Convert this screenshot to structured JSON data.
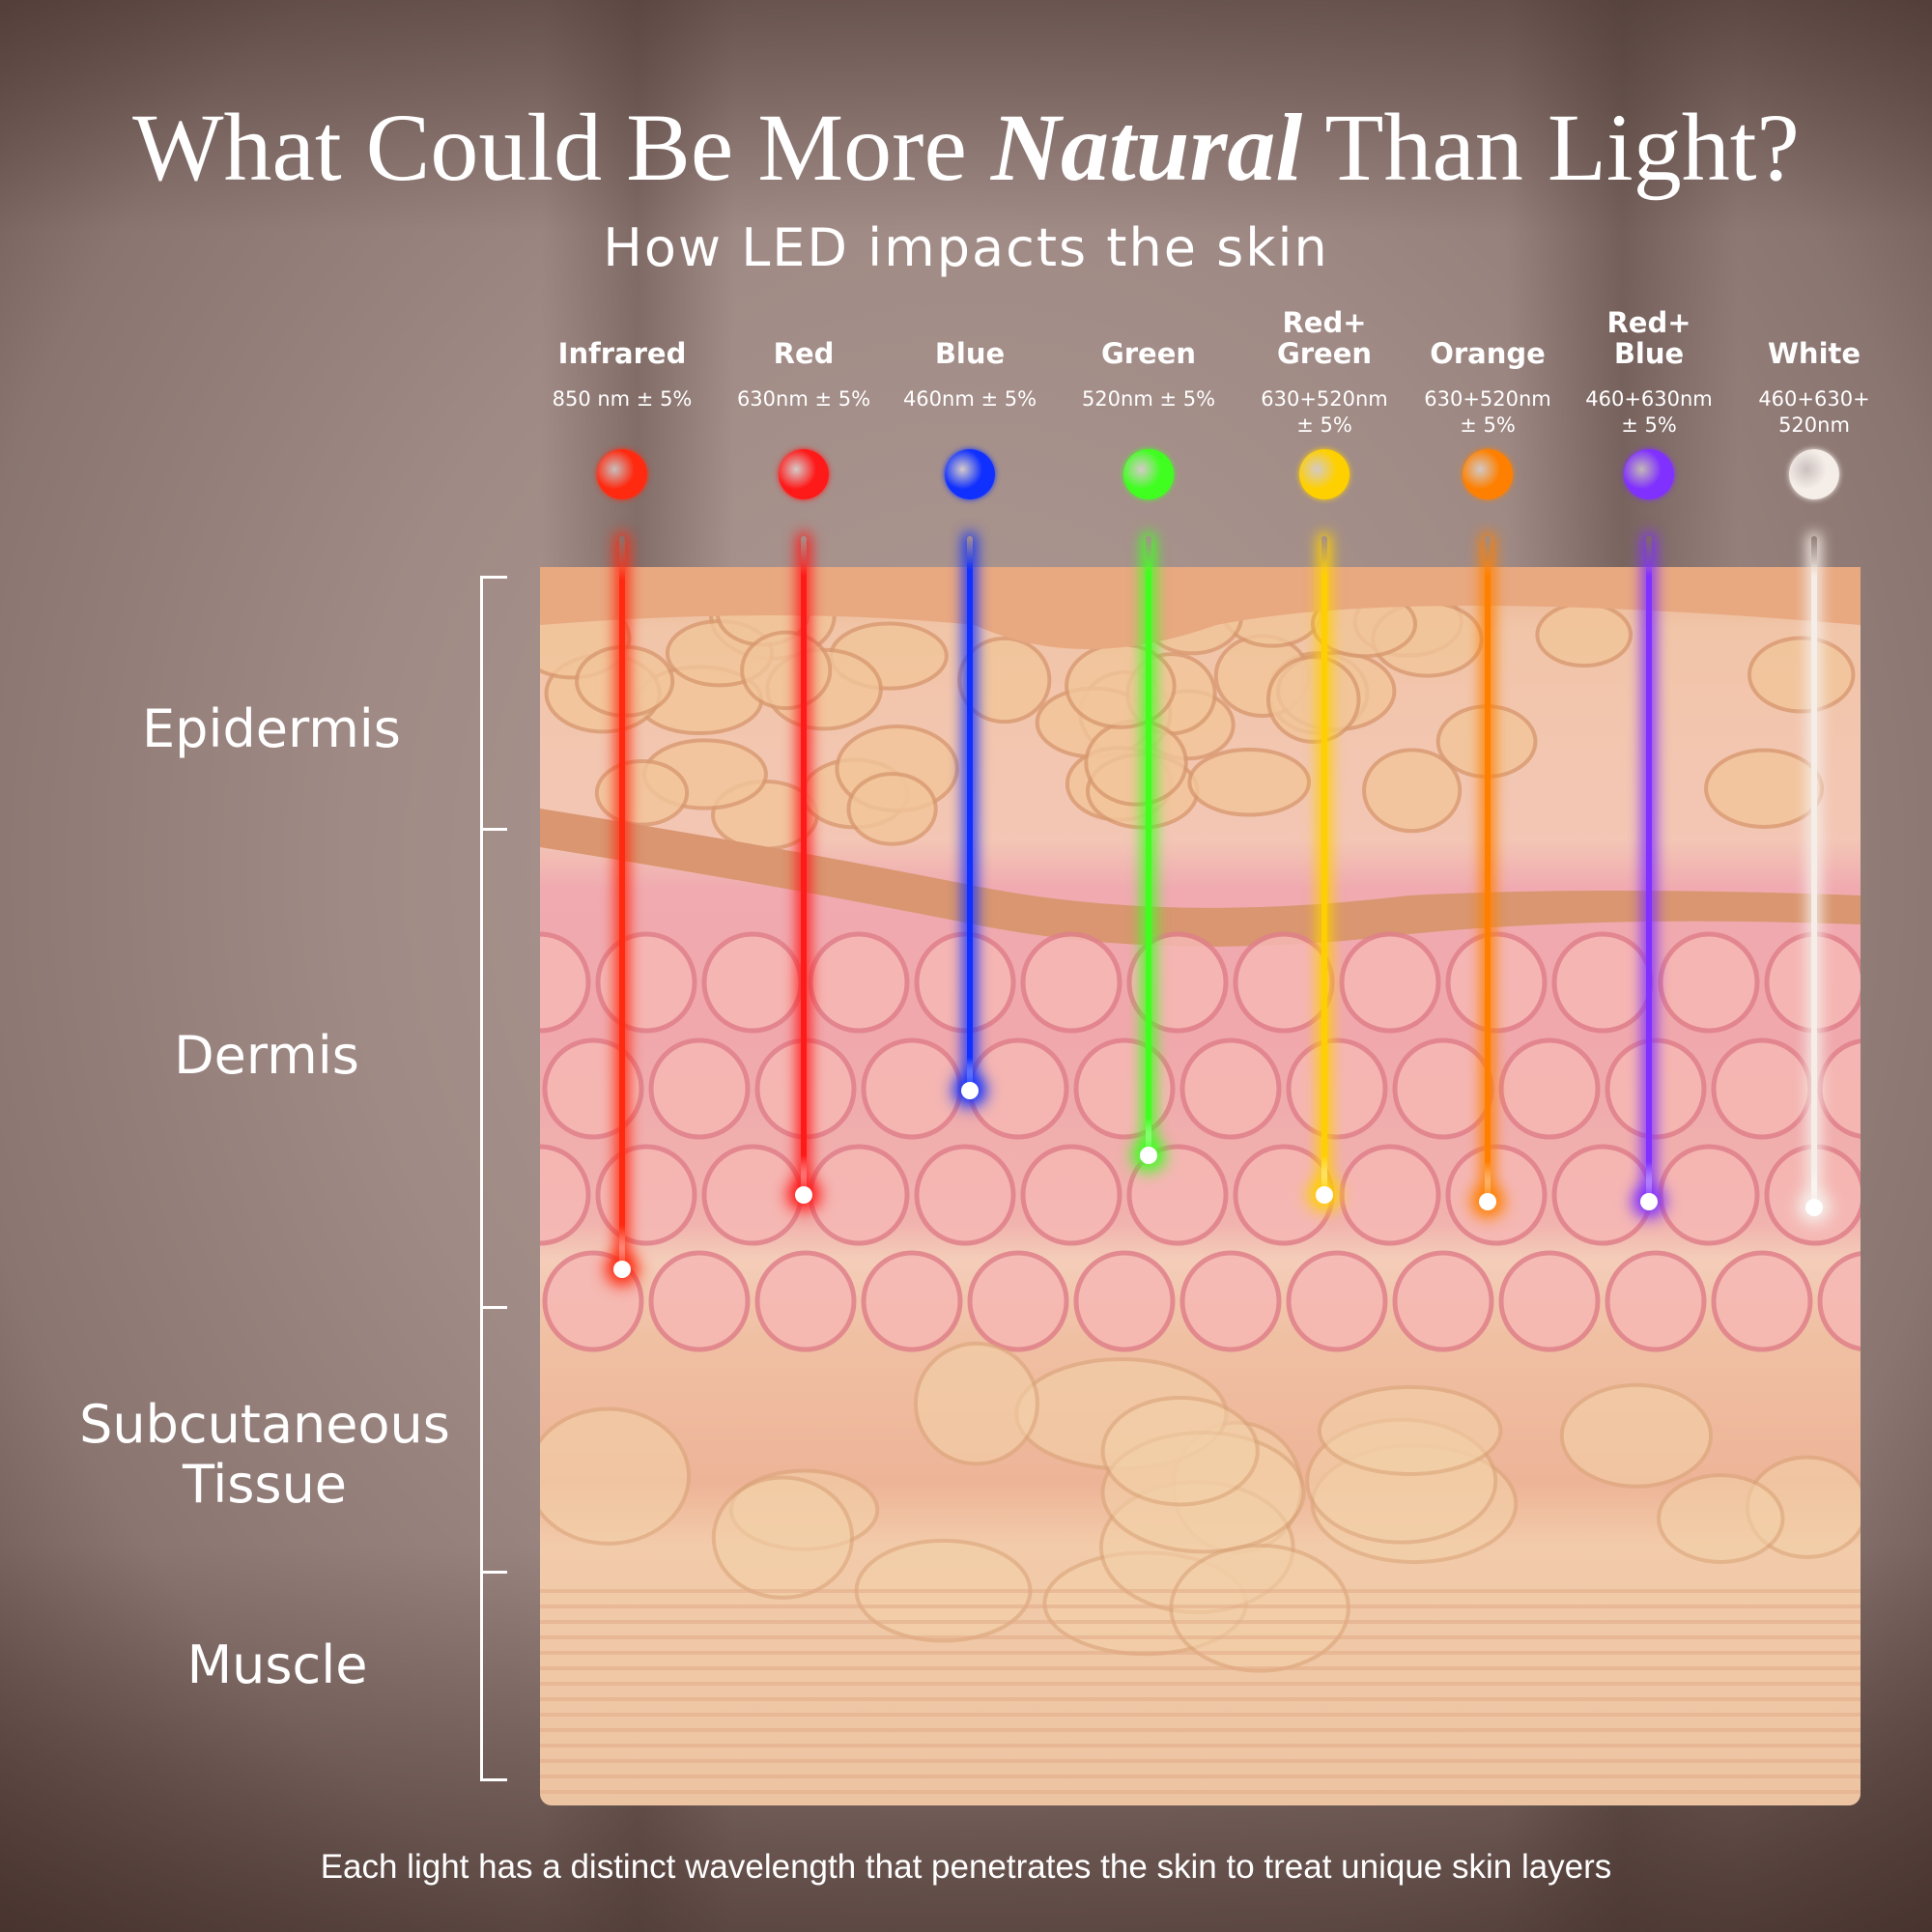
{
  "title": {
    "part1": "What Could Be More ",
    "emphasis": "Natural",
    "part2": " Than Light?"
  },
  "subtitle": "How LED impacts the skin",
  "lights": [
    {
      "name": "Infrared",
      "spec": "850 nm ± 5%",
      "color": "#ff2a10",
      "depth_layer": "Dermis"
    },
    {
      "name": "Red",
      "spec": "630nm ± 5%",
      "color": "#ff1a1a",
      "depth_layer": "Dermis"
    },
    {
      "name": "Blue",
      "spec": "460nm ± 5%",
      "color": "#1030ff",
      "depth_layer": "Dermis"
    },
    {
      "name": "Green",
      "spec": "520nm ± 5%",
      "color": "#40ff20",
      "depth_layer": "Dermis"
    },
    {
      "name": "Red+\nGreen",
      "spec": "630+520nm\n± 5%",
      "color": "#ffd000",
      "depth_layer": "Dermis"
    },
    {
      "name": "Orange",
      "spec": "630+520nm\n± 5%",
      "color": "#ff8000",
      "depth_layer": "Dermis"
    },
    {
      "name": "Red+\nBlue",
      "spec": "460+630nm\n± 5%",
      "color": "#8030ff",
      "depth_layer": "Dermis"
    },
    {
      "name": "White",
      "spec": "460+630+\n520nm",
      "color": "#f5ede8",
      "depth_layer": "Dermis"
    }
  ],
  "layers": {
    "epidermis": "Epidermis",
    "dermis": "Dermis",
    "subcutaneous": "Subcutaneous\nTissue",
    "muscle": "Muscle"
  },
  "footer": "Each light has a distinct wavelength that penetrates the skin to treat unique skin layers"
}
